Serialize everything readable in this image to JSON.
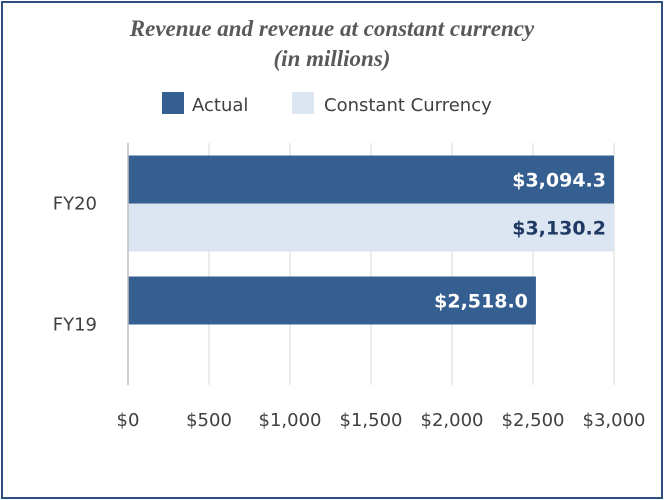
{
  "chart_data": {
    "type": "bar",
    "orientation": "horizontal",
    "title": [
      "Revenue and revenue at constant currency",
      "(in millions)"
    ],
    "categories": [
      "FY20",
      "FY19"
    ],
    "series": [
      {
        "name": "Actual",
        "color": "#365f91",
        "label_color": "#ffffff",
        "values": [
          3094.3,
          2518.0
        ],
        "labels": [
          "$3,094.3",
          "$2,518.0"
        ]
      },
      {
        "name": "Constant Currency",
        "color": "#dce6f2",
        "label_color": "#1f3864",
        "values": [
          3130.2,
          null
        ],
        "labels": [
          "$3,130.2",
          null
        ]
      }
    ],
    "xlim": [
      0,
      3000
    ],
    "xticks": [
      0,
      500,
      1000,
      1500,
      2000,
      2500,
      3000
    ],
    "xtick_labels": [
      "$0",
      "$500",
      "$1,000",
      "$1,500",
      "$2,000",
      "$2,500",
      "$3,000"
    ],
    "grid": true,
    "legend_position": "top"
  }
}
